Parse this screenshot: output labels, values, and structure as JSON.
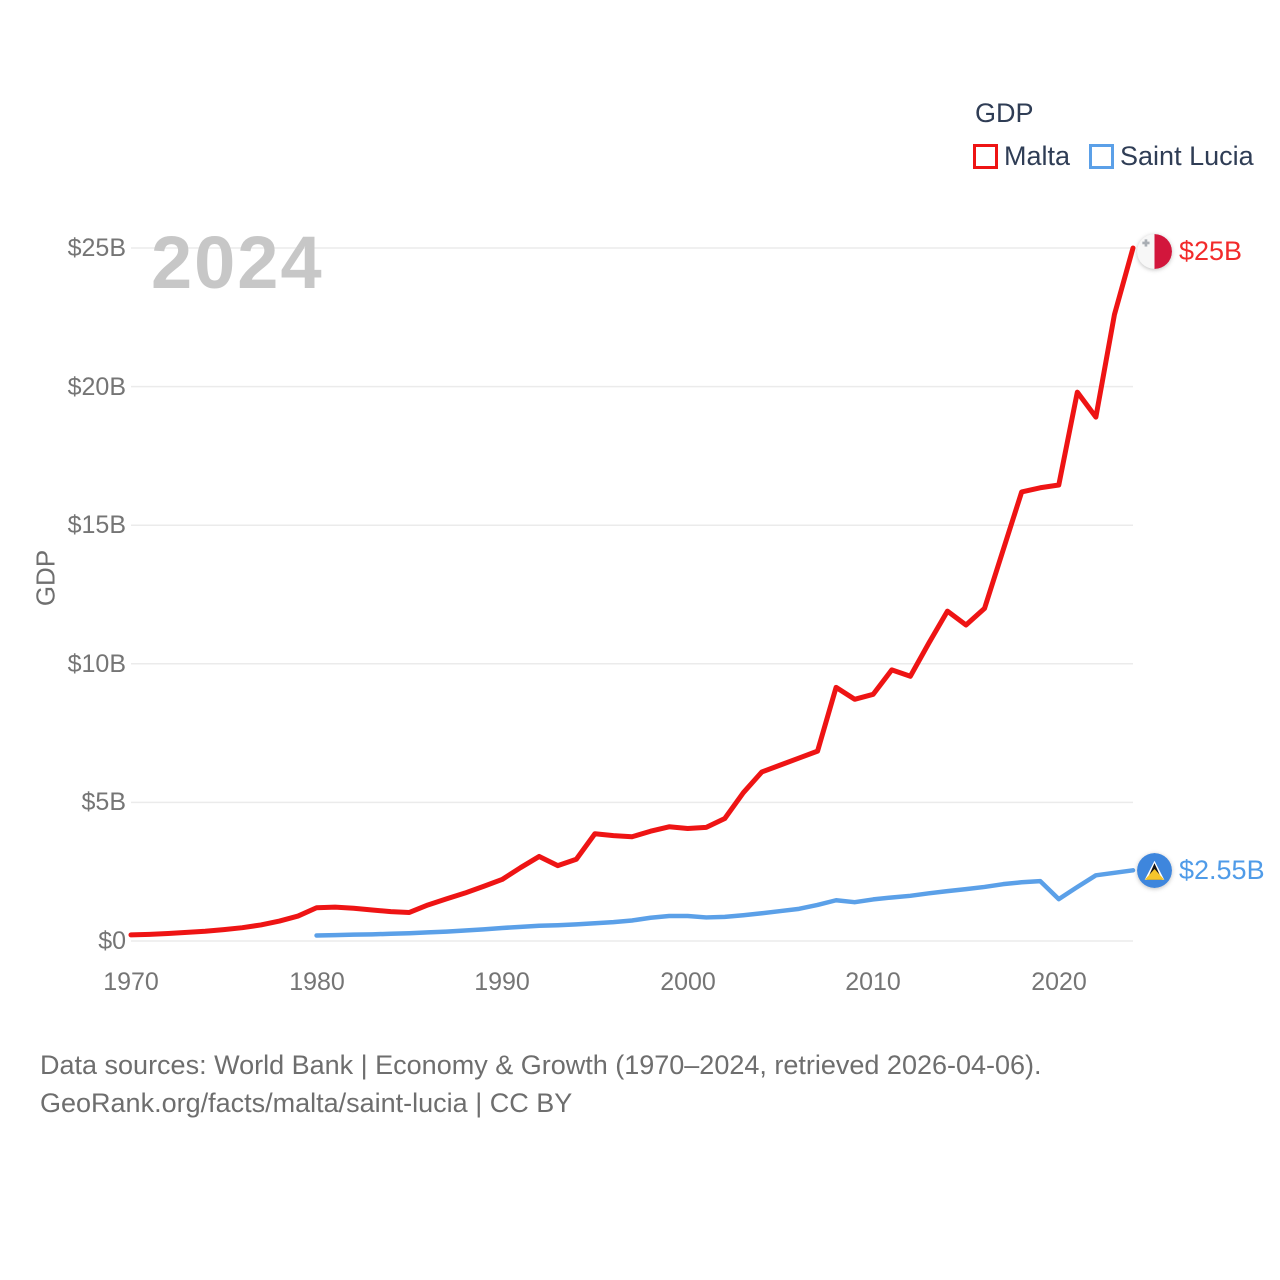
{
  "watermark": "2024",
  "legend": {
    "title": "GDP",
    "items": [
      {
        "label": "Malta"
      },
      {
        "label": "Saint Lucia"
      }
    ]
  },
  "axis": {
    "y_title": "GDP",
    "y_ticks": [
      "$25B",
      "$20B",
      "$15B",
      "$10B",
      "$5B",
      "$0"
    ],
    "x_ticks": [
      "1970",
      "1980",
      "1990",
      "2000",
      "2010",
      "2020"
    ]
  },
  "end_labels": [
    {
      "series": "Malta",
      "value": "$25B",
      "color": "#f22b2b"
    },
    {
      "series": "Saint Lucia",
      "value": "$2.55B",
      "color": "#4f9be8"
    }
  ],
  "footer": {
    "line1": "Data sources: World Bank | Economy & Growth (1970–2024, retrieved 2026-04-06).",
    "line2": "GeoRank.org/facts/malta/saint-lucia | CC BY"
  },
  "colors": {
    "grid": "#ebebeb",
    "tick_text": "#757575",
    "legend_text": "#2f3d55",
    "watermark": "#c7c7c7",
    "footer_text": "#6e6e6e"
  },
  "chart_data": {
    "type": "line",
    "title": "GDP",
    "xlabel": "",
    "ylabel": "GDP",
    "ylim": [
      0,
      25
    ],
    "xlim": [
      1970,
      2024
    ],
    "grid": true,
    "legend_position": "top-right",
    "y_unit": "billion USD",
    "series": [
      {
        "name": "Malta",
        "color": "#ee1414",
        "end_label": "$25B",
        "x": [
          1970,
          1971,
          1972,
          1973,
          1974,
          1975,
          1976,
          1977,
          1978,
          1979,
          1980,
          1981,
          1982,
          1983,
          1984,
          1985,
          1986,
          1987,
          1988,
          1989,
          1990,
          1991,
          1992,
          1993,
          1994,
          1995,
          1996,
          1997,
          1998,
          1999,
          2000,
          2001,
          2002,
          2003,
          2004,
          2005,
          2006,
          2007,
          2008,
          2009,
          2010,
          2011,
          2012,
          2013,
          2014,
          2015,
          2016,
          2017,
          2018,
          2019,
          2020,
          2021,
          2022,
          2023,
          2024
        ],
        "values": [
          0.22,
          0.24,
          0.27,
          0.31,
          0.35,
          0.41,
          0.48,
          0.58,
          0.72,
          0.9,
          1.2,
          1.22,
          1.18,
          1.12,
          1.06,
          1.03,
          1.3,
          1.52,
          1.73,
          1.97,
          2.22,
          2.65,
          3.05,
          2.72,
          2.95,
          3.87,
          3.8,
          3.76,
          3.96,
          4.12,
          4.06,
          4.1,
          4.42,
          5.35,
          6.1,
          6.35,
          6.6,
          6.85,
          9.15,
          8.72,
          8.9,
          9.78,
          9.55,
          10.75,
          11.9,
          11.4,
          12.0,
          14.1,
          16.2,
          16.35,
          16.45,
          19.8,
          18.9,
          22.6,
          25.0
        ]
      },
      {
        "name": "Saint Lucia",
        "color": "#5ba0e8",
        "end_label": "$2.55B",
        "x": [
          1980,
          1981,
          1982,
          1983,
          1984,
          1985,
          1986,
          1987,
          1988,
          1989,
          1990,
          1991,
          1992,
          1993,
          1994,
          1995,
          1996,
          1997,
          1998,
          1999,
          2000,
          2001,
          2002,
          2003,
          2004,
          2005,
          2006,
          2007,
          2008,
          2009,
          2010,
          2011,
          2012,
          2013,
          2014,
          2015,
          2016,
          2017,
          2018,
          2019,
          2020,
          2021,
          2022,
          2023,
          2024
        ],
        "values": [
          0.2,
          0.21,
          0.23,
          0.24,
          0.26,
          0.28,
          0.31,
          0.34,
          0.38,
          0.42,
          0.47,
          0.51,
          0.55,
          0.57,
          0.6,
          0.64,
          0.68,
          0.74,
          0.84,
          0.9,
          0.9,
          0.85,
          0.87,
          0.93,
          1.0,
          1.08,
          1.16,
          1.3,
          1.47,
          1.4,
          1.5,
          1.57,
          1.63,
          1.72,
          1.8,
          1.87,
          1.95,
          2.05,
          2.12,
          2.16,
          1.51,
          1.95,
          2.37,
          2.46,
          2.55
        ]
      }
    ]
  }
}
